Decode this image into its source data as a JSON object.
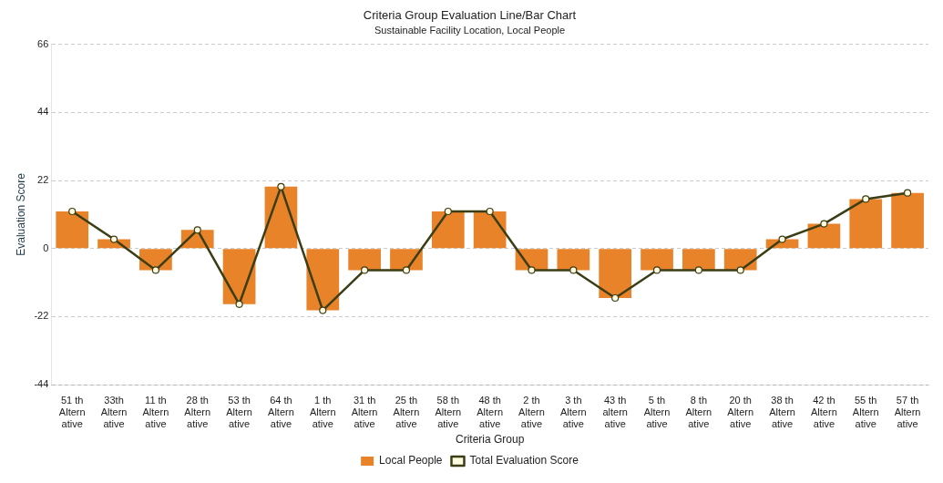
{
  "chart_data": {
    "type": "bar",
    "title": "Criteria Group Evaluation Line/Bar Chart",
    "subtitle": "Sustainable Facility Location, Local People",
    "xlabel": "Criteria Group",
    "ylabel": "Evaluation Score",
    "categories": [
      "51 th Altern ative",
      "33th Altern ative",
      "11 th Altern ative",
      "28 th Altern ative",
      "53 th Altern ative",
      "64 th Altern ative",
      "1 th Altern ative",
      "31 th Altern ative",
      "25 th Altern ative",
      "58 th Altern ative",
      "48 th Altern ative",
      "2 th Altern ative",
      "3 th Altern ative",
      "43 th altern ative",
      "5 th Altern ative",
      "8 th Altern ative",
      "20 th Altern ative",
      "38 th Altern ative",
      "42 th Altern ative",
      "55 th Altern ative",
      "57 th Altern ative"
    ],
    "series": [
      {
        "name": "Local People",
        "color": "#e8832a",
        "values": [
          12,
          3,
          -7,
          6,
          -18,
          20,
          -20,
          -7,
          -7,
          12,
          12,
          -7,
          -7,
          -16,
          -7,
          -7,
          -7,
          3,
          8,
          16,
          18
        ]
      },
      {
        "name": "Total Evaluation Score",
        "type": "line",
        "color": "#3b3d14",
        "values": [
          12,
          3,
          -7,
          6,
          -18,
          20,
          -20,
          -7,
          -7,
          12,
          12,
          -7,
          -7,
          -16,
          -7,
          -7,
          -7,
          3,
          8,
          16,
          18
        ]
      }
    ],
    "ylim": [
      -44,
      66
    ],
    "yticks": [
      -44,
      -22,
      0,
      22,
      44,
      66
    ],
    "grid": "y",
    "legend": "bottom",
    "marker": "circle",
    "line_style": "solid"
  }
}
